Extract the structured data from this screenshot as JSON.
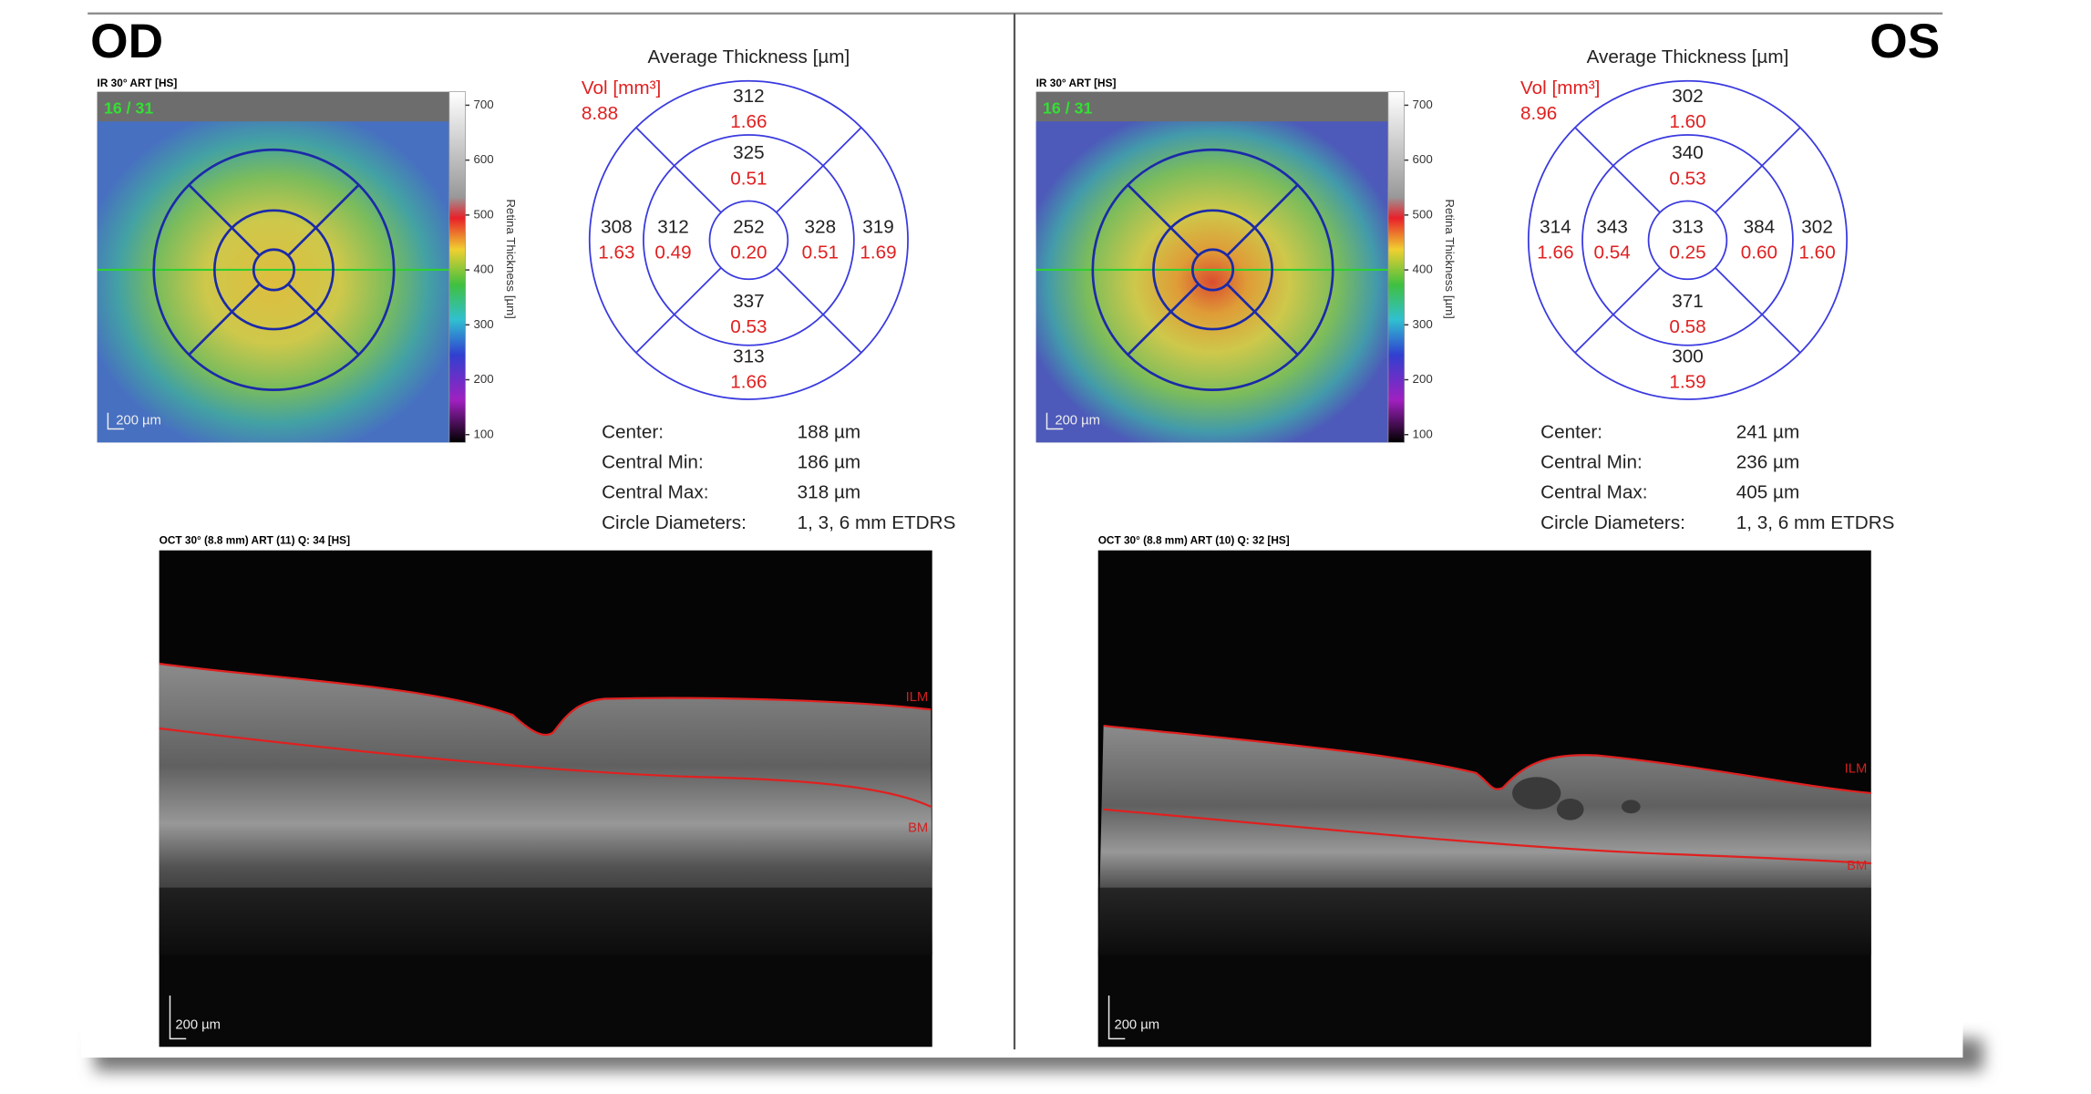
{
  "eyes": [
    {
      "label": "OD",
      "ir": {
        "label": "IR 30° ART [HS]",
        "counter": "16 / 31",
        "scale": "200 µm"
      },
      "colorbar": {
        "label": "Retina Thickness [µm]",
        "ticks": [
          "700",
          "600",
          "500",
          "400",
          "300",
          "200",
          "100"
        ]
      },
      "etdrs": {
        "title": "Average Thickness [µm]",
        "vol_label": "Vol [mm³]",
        "vol": "8.88",
        "sectors": {
          "superior_outer": {
            "thickness": "312",
            "volume": "1.66"
          },
          "superior_inner": {
            "thickness": "325",
            "volume": "0.51"
          },
          "center": {
            "thickness": "252",
            "volume": "0.20"
          },
          "left_inner": {
            "thickness": "312",
            "volume": "0.49"
          },
          "right_inner": {
            "thickness": "328",
            "volume": "0.51"
          },
          "left_outer": {
            "thickness": "308",
            "volume": "1.63"
          },
          "right_outer": {
            "thickness": "319",
            "volume": "1.69"
          },
          "inferior_inner": {
            "thickness": "337",
            "volume": "0.53"
          },
          "inferior_outer": {
            "thickness": "313",
            "volume": "1.66"
          }
        }
      },
      "stats": [
        {
          "label": "Center:",
          "value": "188 µm"
        },
        {
          "label": "Central Min:",
          "value": "186 µm"
        },
        {
          "label": "Central Max:",
          "value": "318 µm"
        },
        {
          "label": "Circle Diameters:",
          "value": "1, 3, 6 mm ETDRS"
        }
      ],
      "oct": {
        "label": "OCT 30° (8.8 mm) ART (11) Q: 34 [HS]",
        "ilm": "ILM",
        "bm": "BM",
        "scale": "200 µm"
      }
    },
    {
      "label": "OS",
      "ir": {
        "label": "IR 30° ART [HS]",
        "counter": "16 / 31",
        "scale": "200 µm"
      },
      "colorbar": {
        "label": "Retina Thickness [µm]",
        "ticks": [
          "700",
          "600",
          "500",
          "400",
          "300",
          "200",
          "100"
        ]
      },
      "etdrs": {
        "title": "Average Thickness [µm]",
        "vol_label": "Vol [mm³]",
        "vol": "8.96",
        "sectors": {
          "superior_outer": {
            "thickness": "302",
            "volume": "1.60"
          },
          "superior_inner": {
            "thickness": "340",
            "volume": "0.53"
          },
          "center": {
            "thickness": "313",
            "volume": "0.25"
          },
          "left_inner": {
            "thickness": "343",
            "volume": "0.54"
          },
          "right_inner": {
            "thickness": "384",
            "volume": "0.60"
          },
          "left_outer": {
            "thickness": "314",
            "volume": "1.66"
          },
          "right_outer": {
            "thickness": "302",
            "volume": "1.60"
          },
          "inferior_inner": {
            "thickness": "371",
            "volume": "0.58"
          },
          "inferior_outer": {
            "thickness": "300",
            "volume": "1.59"
          }
        }
      },
      "stats": [
        {
          "label": "Center:",
          "value": "241 µm"
        },
        {
          "label": "Central Min:",
          "value": "236 µm"
        },
        {
          "label": "Central Max:",
          "value": "405 µm"
        },
        {
          "label": "Circle Diameters:",
          "value": "1, 3, 6 mm ETDRS"
        }
      ],
      "oct": {
        "label": "OCT 30° (8.8 mm) ART (10) Q: 32 [HS]",
        "ilm": "ILM",
        "bm": "BM",
        "scale": "200 µm"
      }
    }
  ]
}
